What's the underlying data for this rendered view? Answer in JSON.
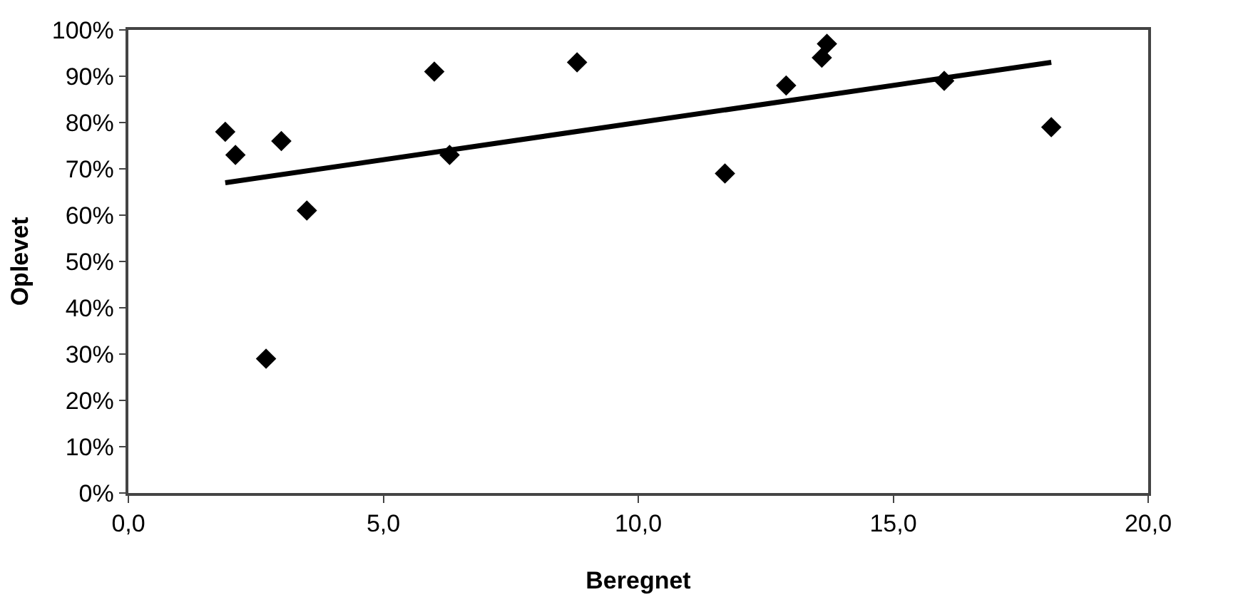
{
  "chart_data": {
    "type": "scatter",
    "xlabel": "Beregnet",
    "ylabel": "Oplevet",
    "marker": "diamond",
    "grid": false,
    "xlim": [
      0,
      20
    ],
    "ylim": [
      0,
      100
    ],
    "xticks": [
      {
        "value": 0,
        "label": "0,0"
      },
      {
        "value": 5,
        "label": "5,0"
      },
      {
        "value": 10,
        "label": "10,0"
      },
      {
        "value": 15,
        "label": "15,0"
      },
      {
        "value": 20,
        "label": "20,0"
      }
    ],
    "yticks": [
      {
        "value": 0,
        "label": "0%"
      },
      {
        "value": 10,
        "label": "10%"
      },
      {
        "value": 20,
        "label": "20%"
      },
      {
        "value": 30,
        "label": "30%"
      },
      {
        "value": 40,
        "label": "40%"
      },
      {
        "value": 50,
        "label": "50%"
      },
      {
        "value": 60,
        "label": "60%"
      },
      {
        "value": 70,
        "label": "70%"
      },
      {
        "value": 80,
        "label": "80%"
      },
      {
        "value": 90,
        "label": "90%"
      },
      {
        "value": 100,
        "label": "100%"
      }
    ],
    "series": [
      {
        "color": "#000000",
        "x": [
          1.9,
          2.1,
          2.7,
          3.0,
          3.5,
          6.0,
          6.3,
          8.8,
          11.7,
          12.9,
          13.6,
          13.7,
          16.0,
          18.1
        ],
        "values": [
          78,
          73,
          29,
          76,
          61,
          91,
          73,
          93,
          69,
          88,
          94,
          97,
          89,
          79
        ]
      },
      {
        "type": "line",
        "color": "#000000",
        "line_style": "solid",
        "marker": "none",
        "x": [
          1.9,
          18.1
        ],
        "values": [
          67,
          93
        ]
      }
    ]
  }
}
